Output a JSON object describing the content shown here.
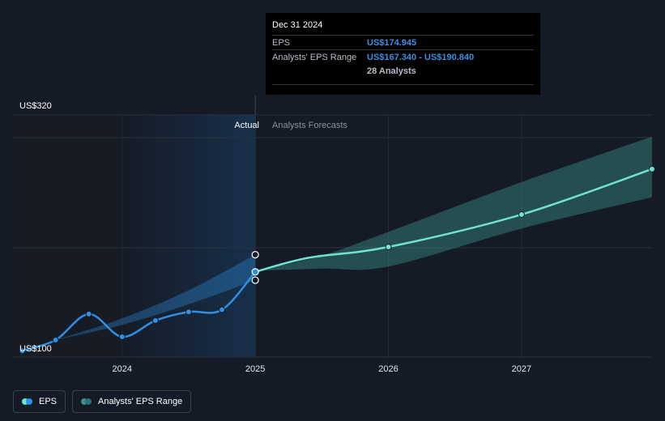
{
  "chart_data": {
    "type": "line",
    "y_labels": {
      "top": "US$320",
      "bottom": "US$100"
    },
    "ylim": [
      100,
      320
    ],
    "x_ticks": [
      {
        "value": 2024.0,
        "label": "2024"
      },
      {
        "value": 2025.0,
        "label": "2025"
      },
      {
        "value": 2026.0,
        "label": "2026"
      },
      {
        "value": 2027.0,
        "label": "2027"
      }
    ],
    "xlim": [
      2023.18,
      2027.98
    ],
    "region_labels": {
      "actual": "Actual",
      "forecast": "Analysts Forecasts"
    },
    "divider_x": 2025.0,
    "series": [
      {
        "name": "EPS",
        "color": "#2f8fe3",
        "points": [
          [
            2023.25,
            102
          ],
          [
            2023.5,
            112
          ],
          [
            2023.75,
            136
          ],
          [
            2024.0,
            115
          ],
          [
            2024.25,
            130
          ],
          [
            2024.5,
            138
          ],
          [
            2024.75,
            140
          ],
          [
            2025.0,
            175
          ]
        ]
      },
      {
        "name": "EPS Forecast",
        "color": "#6fe3d1",
        "points": [
          [
            2025.0,
            175
          ],
          [
            2025.4,
            188
          ],
          [
            2026.0,
            198
          ],
          [
            2027.0,
            228
          ],
          [
            2027.98,
            270
          ]
        ]
      },
      {
        "name": "Analysts' EPS Range",
        "color": "#2f8fe3",
        "lower": [
          [
            2023.5,
            112
          ],
          [
            2024.0,
            126
          ],
          [
            2024.5,
            145
          ],
          [
            2025.0,
            167.3
          ]
        ],
        "upper": [
          [
            2023.5,
            112
          ],
          [
            2024.0,
            132
          ],
          [
            2024.5,
            158
          ],
          [
            2025.0,
            190.8
          ]
        ]
      },
      {
        "name": "Forecast Range",
        "color": "#3a8f86",
        "lower": [
          [
            2025.0,
            176
          ],
          [
            2025.5,
            178
          ],
          [
            2026.0,
            180
          ],
          [
            2027.0,
            215
          ],
          [
            2027.98,
            244
          ]
        ],
        "upper": [
          [
            2025.0,
            176
          ],
          [
            2025.5,
            190
          ],
          [
            2026.0,
            212
          ],
          [
            2027.0,
            258
          ],
          [
            2027.98,
            300
          ]
        ]
      }
    ],
    "markers": [
      {
        "x": 2025.0,
        "y": 190.8,
        "series": "high"
      },
      {
        "x": 2025.0,
        "y": 175,
        "series": "mid"
      },
      {
        "x": 2025.0,
        "y": 167.3,
        "series": "low"
      }
    ]
  },
  "tooltip": {
    "date": "Dec 31 2024",
    "eps_label": "EPS",
    "eps_value": "US$174.945",
    "range_label": "Analysts' EPS Range",
    "range_value": "US$167.340 - US$190.840",
    "analysts": "28 Analysts"
  },
  "legend": {
    "eps": "EPS",
    "range": "Analysts' EPS Range",
    "eps_color": "#2f8fe3",
    "range_color": "#2b6f7a"
  }
}
